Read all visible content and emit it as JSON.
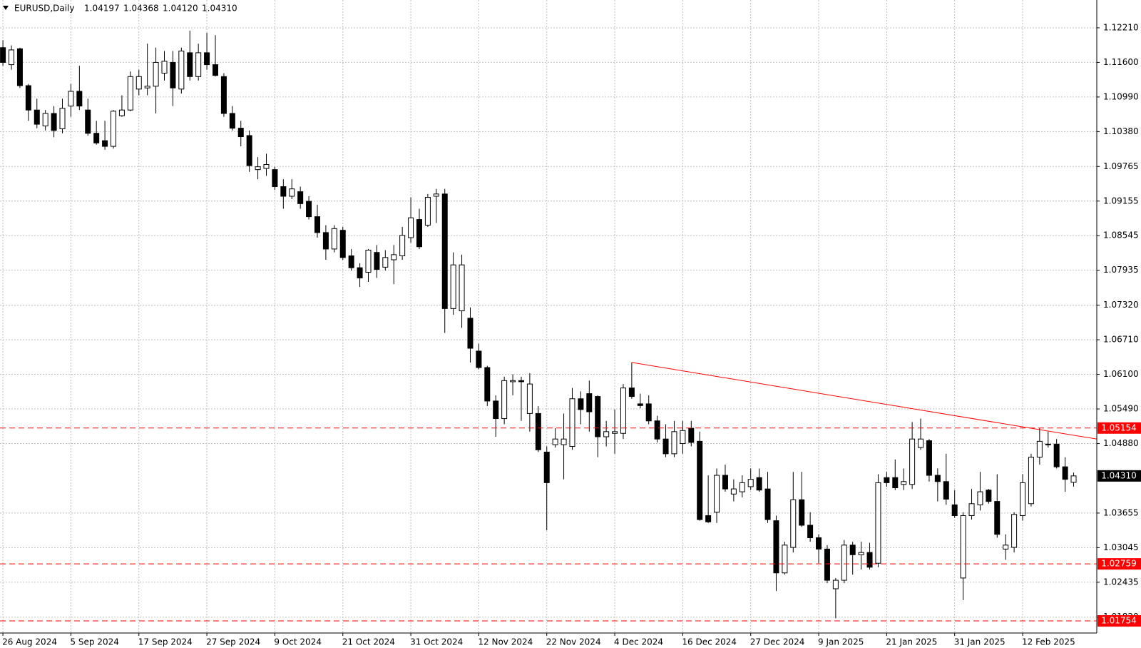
{
  "header": {
    "title": "EURUSD,Daily",
    "values": [
      1.04197,
      1.04368,
      1.0412,
      1.0431
    ],
    "value_labels": [
      "1.04197",
      "1.04368",
      "1.04120",
      "1.04310"
    ]
  },
  "chart_data": {
    "type": "candlestick",
    "categories": [
      "26 Aug 2024",
      null,
      null,
      null,
      null,
      null,
      null,
      null,
      "5 Sep 2024",
      null,
      null,
      null,
      null,
      null,
      null,
      null,
      "17 Sep 2024",
      null,
      null,
      null,
      null,
      null,
      null,
      null,
      "27 Sep 2024",
      null,
      null,
      null,
      null,
      null,
      null,
      null,
      "9 Oct 2024",
      null,
      null,
      null,
      null,
      null,
      null,
      null,
      "21 Oct 2024",
      null,
      null,
      null,
      null,
      null,
      null,
      null,
      "31 Oct 2024",
      null,
      null,
      null,
      null,
      null,
      null,
      null,
      "12 Nov 2024",
      null,
      null,
      null,
      null,
      null,
      null,
      null,
      "22 Nov 2024",
      null,
      null,
      null,
      null,
      null,
      null,
      null,
      "4 Dec 2024",
      null,
      null,
      null,
      null,
      null,
      null,
      null,
      "16 Dec 2024",
      null,
      null,
      null,
      null,
      null,
      null,
      null,
      "27 Dec 2024",
      null,
      null,
      null,
      null,
      null,
      null,
      null,
      "9 Jan 2025",
      null,
      null,
      null,
      null,
      null,
      null,
      null,
      "21 Jan 2025",
      null,
      null,
      null,
      null,
      null,
      null,
      null,
      "31 Jan 2025",
      null,
      null,
      null,
      null,
      null,
      null,
      null,
      "12 Feb 2025",
      null,
      null,
      null,
      null,
      null,
      null
    ],
    "open": [
      1.1186,
      1.1156,
      1.1184,
      1.1119,
      1.1076,
      1.1048,
      1.107,
      1.1043,
      1.1083,
      1.1109,
      1.1076,
      1.1035,
      1.1022,
      1.1012,
      1.1066,
      1.1076,
      1.1113,
      1.1115,
      1.1118,
      1.1141,
      1.116,
      1.1113,
      1.1177,
      1.1135,
      1.1177,
      1.1156,
      1.1135,
      1.107,
      1.1044,
      1.1031,
      1.0971,
      1.0973,
      1.0971,
      1.0941,
      1.0924,
      1.0932,
      1.0915,
      1.0888,
      1.086,
      1.0831,
      1.0864,
      1.0819,
      1.0798,
      1.079,
      1.0825,
      1.0799,
      1.0812,
      1.0819,
      1.0851,
      1.0883,
      1.0873,
      1.0924,
      1.0928,
      1.0726,
      1.0722,
      1.0709,
      1.0651,
      1.0622,
      1.0563,
      1.0532,
      1.0597,
      1.0599,
      1.0541,
      1.0541,
      1.0473,
      1.0486,
      1.0486,
      1.0483,
      1.0567,
      1.0576,
      1.0571,
      1.05,
      1.0506,
      1.0506,
      1.0586,
      1.0558,
      1.0558,
      1.0528,
      1.0496,
      1.047,
      1.0488,
      1.0515,
      1.0492,
      1.0361,
      1.0367,
      1.0432,
      1.0399,
      1.0403,
      1.0412,
      1.0428,
      1.0408,
      1.0352,
      1.026,
      1.0305,
      1.0389,
      1.0344,
      1.0322,
      1.0302,
      1.0232,
      1.0247,
      1.0309,
      1.0292,
      1.0296,
      1.0277,
      1.0428,
      1.0428,
      1.0416,
      1.0416,
      1.0481,
      1.0493,
      1.0432,
      1.0421,
      1.038,
      1.0251,
      1.0361,
      1.038,
      1.0406,
      1.0386,
      1.0302,
      1.0305,
      1.0361,
      1.0382,
      1.0464,
      1.0487,
      1.0487,
      1.0447,
      1.04197
    ],
    "high": [
      1.1199,
      1.119,
      1.1186,
      1.1122,
      1.1096,
      1.1076,
      1.1083,
      1.1096,
      1.1122,
      1.1154,
      1.1096,
      1.1057,
      1.1057,
      1.1076,
      1.1102,
      1.1144,
      1.1147,
      1.1193,
      1.1186,
      1.118,
      1.118,
      1.1186,
      1.1216,
      1.1193,
      1.1212,
      1.1208,
      1.1141,
      1.1083,
      1.1057,
      1.104,
      1.0993,
      1.0999,
      1.0976,
      1.0954,
      1.0954,
      1.0941,
      1.0924,
      1.0909,
      1.0873,
      1.0873,
      1.087,
      1.0831,
      1.0806,
      1.0831,
      1.0838,
      1.0829,
      1.0838,
      1.087,
      1.0922,
      1.0902,
      1.0928,
      1.0937,
      1.0937,
      1.0825,
      1.0821,
      1.0728,
      1.0664,
      1.0625,
      1.0573,
      1.0606,
      1.061,
      1.0606,
      1.0612,
      1.0554,
      1.0483,
      1.0515,
      1.0541,
      1.0586,
      1.058,
      1.0599,
      1.0573,
      1.0528,
      1.0548,
      1.0593,
      1.0631,
      1.0576,
      1.0573,
      1.0537,
      1.0522,
      1.0528,
      1.0528,
      1.0528,
      1.0509,
      1.0432,
      1.0444,
      1.0451,
      1.0425,
      1.0432,
      1.0444,
      1.0444,
      1.0438,
      1.0361,
      1.0315,
      1.0438,
      1.0438,
      1.0367,
      1.0328,
      1.0309,
      1.0251,
      1.0318,
      1.0315,
      1.0315,
      1.0313,
      1.0434,
      1.0438,
      1.046,
      1.0444,
      1.0526,
      1.0532,
      1.0496,
      1.0444,
      1.047,
      1.0406,
      1.0367,
      1.0408,
      1.0438,
      1.0408,
      1.0434,
      1.0328,
      1.0367,
      1.0434,
      1.047,
      1.0515,
      1.0509,
      1.0496,
      1.0464,
      1.04368
    ],
    "low": [
      1.1154,
      1.1147,
      1.1115,
      1.1057,
      1.1044,
      1.104,
      1.1028,
      1.1035,
      1.1064,
      1.1076,
      1.1031,
      1.1015,
      1.1006,
      1.1008,
      1.1064,
      1.1074,
      1.1102,
      1.1102,
      1.107,
      1.1128,
      1.1083,
      1.1105,
      1.1128,
      1.1128,
      1.1147,
      1.1135,
      1.1064,
      1.104,
      1.1012,
      1.0967,
      1.0954,
      1.096,
      1.0935,
      1.0902,
      1.0919,
      1.0902,
      1.0883,
      1.0851,
      1.0812,
      1.0825,
      1.0812,
      1.0793,
      1.0764,
      1.0773,
      1.078,
      1.0793,
      1.0769,
      1.0812,
      1.0842,
      1.0831,
      1.087,
      1.0877,
      1.0683,
      1.0715,
      1.0692,
      1.0631,
      1.0619,
      1.0554,
      1.05,
      1.0522,
      1.0573,
      1.0528,
      1.0509,
      1.0473,
      1.0335,
      1.0481,
      1.0425,
      1.0477,
      1.0522,
      1.0509,
      1.0464,
      1.0483,
      1.047,
      1.0496,
      1.0567,
      1.055,
      1.0522,
      1.049,
      1.0464,
      1.0464,
      1.047,
      1.0483,
      1.0352,
      1.0348,
      1.0348,
      1.0403,
      1.0386,
      1.0393,
      1.0406,
      1.0403,
      1.0348,
      1.0228,
      1.0257,
      1.0296,
      1.0341,
      1.0315,
      1.0277,
      1.0242,
      1.018,
      1.0242,
      1.0257,
      1.0266,
      1.0266,
      1.027,
      1.0412,
      1.0406,
      1.0406,
      1.0408,
      1.0477,
      1.0421,
      1.0386,
      1.038,
      1.0357,
      1.0212,
      1.0354,
      1.037,
      1.0382,
      1.0322,
      1.0283,
      1.0296,
      1.0352,
      1.0377,
      1.0451,
      1.0481,
      1.0444,
      1.0403,
      1.0412
    ],
    "close": [
      1.116,
      1.1182,
      1.1119,
      1.1076,
      1.1051,
      1.107,
      1.104,
      1.1079,
      1.1109,
      1.1083,
      1.1035,
      1.1018,
      1.1012,
      1.1074,
      1.1076,
      1.1135,
      1.1135,
      1.1118,
      1.116,
      1.1162,
      1.1115,
      1.118,
      1.1135,
      1.1177,
      1.1156,
      1.1137,
      1.107,
      1.1044,
      1.1029,
      1.0978,
      1.0976,
      1.098,
      1.0941,
      1.0924,
      1.0937,
      1.0911,
      1.0888,
      1.086,
      1.0831,
      1.0867,
      1.0816,
      1.0798,
      1.078,
      1.0829,
      1.0795,
      1.0816,
      1.0821,
      1.0855,
      1.0886,
      1.0835,
      1.0922,
      1.0928,
      1.0726,
      1.0803,
      1.0803,
      1.0656,
      1.0622,
      1.0563,
      1.0532,
      1.0599,
      1.0599,
      1.0597,
      1.0593,
      1.0477,
      1.0419,
      1.0496,
      1.0496,
      1.0567,
      1.0548,
      1.0544,
      1.05,
      1.0509,
      1.0509,
      1.0586,
      1.0571,
      1.0555,
      1.0528,
      1.0496,
      1.047,
      1.0509,
      1.0511,
      1.049,
      1.0354,
      1.035,
      1.0432,
      1.0408,
      1.0408,
      1.0419,
      1.0425,
      1.0406,
      1.0354,
      1.026,
      1.0309,
      1.0389,
      1.0344,
      1.0322,
      1.0302,
      1.0247,
      1.0247,
      1.0309,
      1.0292,
      1.0296,
      1.027,
      1.0419,
      1.0419,
      1.041,
      1.0421,
      1.0496,
      1.0496,
      1.0432,
      1.0421,
      1.039,
      1.0361,
      1.0361,
      1.0382,
      1.0403,
      1.0386,
      1.0328,
      1.0309,
      1.0363,
      1.0419,
      1.0464,
      1.0492,
      1.0486,
      1.0447,
      1.0425,
      1.0431
    ],
    "up_color": "#ffffff",
    "down_color": "#000000",
    "wick_color": "#000000",
    "ylim": [
      1.0154,
      1.127
    ],
    "yticks": [
      {
        "value": 1.1221,
        "label": "1.12210"
      },
      {
        "value": 1.116,
        "label": "1.11600"
      },
      {
        "value": 1.1099,
        "label": "1.10990"
      },
      {
        "value": 1.1038,
        "label": "1.10380"
      },
      1.09765,
      1.09155,
      1.08545,
      1.07935,
      {
        "value": 1.0732,
        "label": "1.07320"
      },
      {
        "value": 1.0671,
        "label": "1.06710"
      },
      {
        "value": 1.061,
        "label": "1.06100"
      },
      {
        "value": 1.0549,
        "label": "1.05490"
      },
      {
        "value": 1.0488,
        "label": "1.04880"
      },
      1.03655,
      1.03045,
      1.02435,
      {
        "value": 1.0182,
        "label": "1.01820"
      }
    ],
    "grid": true,
    "levels": [
      {
        "value": 1.05154,
        "color": "#ff0000"
      },
      {
        "value": 1.02759,
        "color": "#ff0000"
      },
      {
        "value": 1.01754,
        "color": "#ff0000"
      }
    ],
    "last_price": {
      "value": 1.0431,
      "label": "1.04310",
      "color": "#000000"
    },
    "trendline": {
      "x": [
        74,
        128.7
      ],
      "values": [
        1.0631,
        1.0496
      ],
      "color": "#ff0000"
    }
  }
}
